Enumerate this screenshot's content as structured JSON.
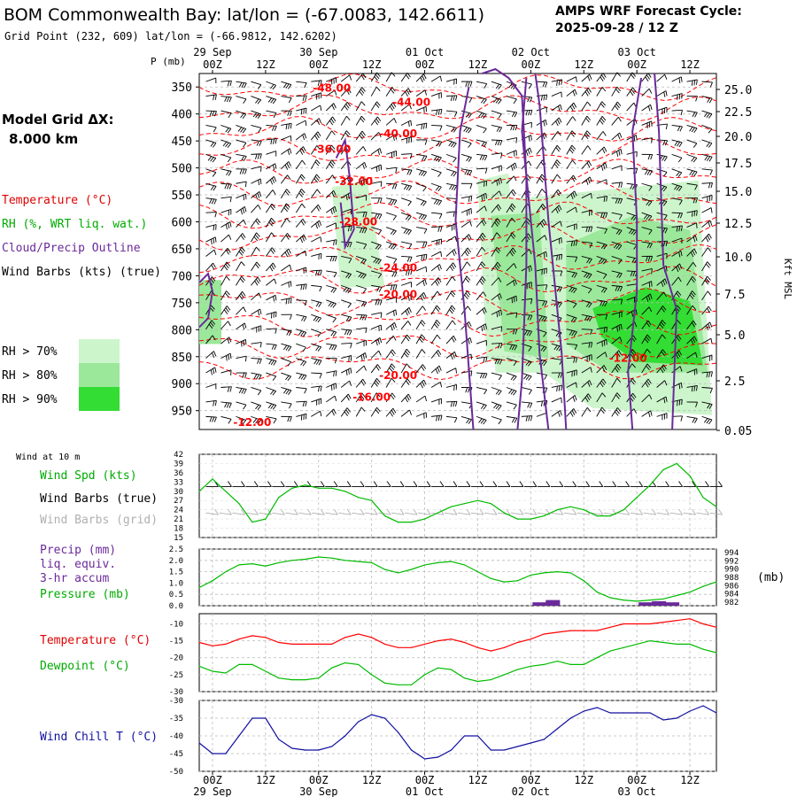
{
  "header": {
    "title": "BOM Commonwealth Bay:  lat/lon = (-67.0083, 142.6611)",
    "cycle_line1": "AMPS WRF Forecast Cycle:",
    "cycle_line2": "2025-09-28 / 12  Z",
    "grid_point": "Grid Point (232, 609) lat/lon = (-66.9812, 142.6202)"
  },
  "side": {
    "model_grid_line1": "Model Grid ΔX:",
    "model_grid_line2": "8.000 km",
    "legend_temperature": "Temperature (°C)",
    "legend_rh": "RH (%, WRT liq. wat.)",
    "legend_cloud": "Cloud/Precip Outline",
    "legend_wind": "Wind Barbs (kts) (true)",
    "rh_keys": [
      "RH > 70%",
      "RH > 80%",
      "RH > 90%"
    ],
    "wind10m": "Wind at 10 m",
    "wind_spd": "Wind Spd (kts)",
    "wind_barbs_true": "Wind Barbs (true)",
    "wind_barbs_grid": "Wind Barbs (grid)",
    "precip_line1": "Precip (mm)",
    "precip_line2": "liq. equiv.",
    "precip_line3": "3-hr accum",
    "pressure": "Pressure (mb)",
    "pressure_unit": "(mb)",
    "temperature": "Temperature (°C)",
    "dewpoint": "Dewpoint (°C)",
    "windchill": "Wind Chill T (°C)"
  },
  "colors": {
    "temperature": "#ff0000",
    "rh": "#00bb00",
    "cloud": "#6a2a9a",
    "wind": "#000000",
    "grid_barbs": "#b0b0b0",
    "windchill": "#1010a0",
    "rh70": "#ccf5cc",
    "rh80": "#9be89b",
    "rh90": "#33dd33"
  },
  "chart_data": [
    {
      "type": "heatmap",
      "name": "cross-section",
      "ylabel": "P (mb)",
      "yticks": [
        "350",
        "400",
        "450",
        "500",
        "550",
        "600",
        "650",
        "700",
        "750",
        "800",
        "850",
        "900",
        "950"
      ],
      "ylim": [
        325,
        985
      ],
      "right_ylabel": "Kft MSL",
      "right_ticks": [
        "25.0",
        "22.5",
        "20.0",
        "17.5",
        "15.0",
        "12.5",
        "10.0",
        "7.5",
        "5.0",
        "2.5",
        "0.05"
      ],
      "xticks": [
        "00Z",
        "12Z",
        "00Z",
        "12Z",
        "00Z",
        "12Z",
        "00Z",
        "12Z",
        "00Z",
        "12Z"
      ],
      "date_labels": [
        "29 Sep",
        "30 Sep",
        "01 Oct",
        "02 Oct",
        "03 Oct"
      ],
      "x_range_hours": [
        -3,
        114
      ],
      "temperature_contour_labels": [
        {
          "label": "-48.00",
          "hour": 27,
          "p": 352
        },
        {
          "label": "-44.00",
          "hour": 45,
          "p": 378
        },
        {
          "label": "-40.00",
          "hour": 42,
          "p": 437
        },
        {
          "label": "-36.00",
          "hour": 27,
          "p": 465
        },
        {
          "label": "-32.00",
          "hour": 32,
          "p": 525
        },
        {
          "label": "-28.00",
          "hour": 33,
          "p": 600
        },
        {
          "label": "-24.00",
          "hour": 42,
          "p": 685
        },
        {
          "label": "-20.00",
          "hour": 42,
          "p": 735
        },
        {
          "label": "-20.00",
          "hour": 42,
          "p": 885
        },
        {
          "label": "-16.00",
          "hour": 36,
          "p": 925
        },
        {
          "label": "-12.00",
          "hour": 9,
          "p": 972
        },
        {
          "label": "-12.00",
          "hour": 94,
          "p": 853
        }
      ]
    },
    {
      "type": "line",
      "name": "wind10m",
      "ylim": [
        15,
        42
      ],
      "yticks": [
        "42",
        "39",
        "36",
        "33",
        "30",
        "27",
        "24",
        "21",
        "18",
        "15"
      ],
      "series": [
        {
          "name": "Wind Spd (kts)",
          "x": [
            -3,
            0,
            3,
            6,
            9,
            12,
            15,
            18,
            21,
            24,
            27,
            30,
            33,
            36,
            39,
            42,
            45,
            48,
            51,
            54,
            57,
            60,
            63,
            66,
            69,
            72,
            75,
            78,
            81,
            84,
            87,
            90,
            93,
            96,
            99,
            102,
            105,
            108,
            111,
            114
          ],
          "values": [
            30,
            34,
            30,
            26,
            20,
            21,
            28,
            31,
            32,
            31,
            31,
            30,
            28,
            27,
            22,
            20,
            20,
            21,
            23,
            25,
            26,
            27,
            26,
            23,
            21,
            21,
            22,
            24,
            25,
            24,
            22,
            22,
            24,
            28,
            32,
            37,
            39,
            35,
            28,
            25
          ]
        }
      ]
    },
    {
      "type": "line",
      "name": "precip-pressure",
      "ylim": [
        0,
        2.5
      ],
      "yticks": [
        "2.5",
        "2.0",
        "1.5",
        "1.0",
        "0.5",
        "0.0"
      ],
      "right_yticks": [
        "994",
        "992",
        "990",
        "988",
        "986",
        "984",
        "982"
      ],
      "series": [
        {
          "name": "Pressure (mb)",
          "x": [
            -3,
            0,
            3,
            6,
            9,
            12,
            15,
            18,
            21,
            24,
            27,
            30,
            33,
            36,
            39,
            42,
            45,
            48,
            51,
            54,
            57,
            60,
            63,
            66,
            69,
            72,
            75,
            78,
            81,
            84,
            87,
            90,
            93,
            96,
            99,
            102,
            105,
            108,
            111,
            114
          ],
          "values": [
            0.8,
            1.1,
            1.5,
            1.8,
            1.85,
            1.75,
            1.9,
            2.0,
            2.05,
            2.15,
            2.1,
            2.0,
            1.95,
            1.9,
            1.6,
            1.45,
            1.6,
            1.8,
            1.9,
            1.95,
            1.8,
            1.5,
            1.2,
            1.05,
            1.1,
            1.35,
            1.45,
            1.5,
            1.45,
            1.1,
            0.6,
            0.35,
            0.25,
            0.2,
            0.25,
            0.3,
            0.45,
            0.6,
            0.85,
            1.05
          ]
        }
      ],
      "precip_bars": [
        {
          "hour": 74,
          "value": 0.15
        },
        {
          "hour": 77,
          "value": 0.25
        },
        {
          "hour": 98,
          "value": 0.15
        },
        {
          "hour": 101,
          "value": 0.2
        },
        {
          "hour": 104,
          "value": 0.15
        }
      ]
    },
    {
      "type": "line",
      "name": "temperature-dewpoint",
      "ylim": [
        -30,
        -7
      ],
      "yticks": [
        "-10",
        "-15",
        "-20",
        "-25",
        "-30"
      ],
      "series": [
        {
          "name": "Temperature (°C)",
          "x": [
            -3,
            0,
            3,
            6,
            9,
            12,
            15,
            18,
            21,
            24,
            27,
            30,
            33,
            36,
            39,
            42,
            45,
            48,
            51,
            54,
            57,
            60,
            63,
            66,
            69,
            72,
            75,
            78,
            81,
            84,
            87,
            90,
            93,
            96,
            99,
            102,
            105,
            108,
            111,
            114
          ],
          "values": [
            -15.5,
            -16.5,
            -16,
            -14.5,
            -13.5,
            -14,
            -15.5,
            -16,
            -16,
            -16,
            -16,
            -14,
            -13,
            -14,
            -16,
            -17,
            -17,
            -16,
            -15,
            -14.5,
            -15.5,
            -17,
            -18,
            -17,
            -15.5,
            -14.5,
            -13,
            -12.5,
            -12,
            -12,
            -12,
            -11,
            -10,
            -10,
            -10,
            -9.5,
            -9,
            -8.5,
            -10,
            -11
          ]
        },
        {
          "name": "Dewpoint (°C)",
          "x": [
            -3,
            0,
            3,
            6,
            9,
            12,
            15,
            18,
            21,
            24,
            27,
            30,
            33,
            36,
            39,
            42,
            45,
            48,
            51,
            54,
            57,
            60,
            63,
            66,
            69,
            72,
            75,
            78,
            81,
            84,
            87,
            90,
            93,
            96,
            99,
            102,
            105,
            108,
            111,
            114
          ],
          "values": [
            -22.5,
            -24,
            -24.5,
            -22,
            -22,
            -24,
            -26,
            -26.5,
            -26.5,
            -26,
            -23,
            -21.5,
            -22,
            -25,
            -27.5,
            -28,
            -28,
            -25,
            -23,
            -23.5,
            -26,
            -27,
            -26.5,
            -25,
            -23.5,
            -22.5,
            -22,
            -21,
            -22,
            -22,
            -20,
            -18,
            -17,
            -16,
            -15,
            -15.5,
            -16,
            -16,
            -17.5,
            -18.5
          ]
        }
      ]
    },
    {
      "type": "line",
      "name": "windchill",
      "ylim": [
        -50,
        -30
      ],
      "yticks": [
        "-30",
        "-35",
        "-40",
        "-45",
        "-50"
      ],
      "series": [
        {
          "name": "Wind Chill T (°C)",
          "x": [
            -3,
            0,
            3,
            6,
            9,
            12,
            15,
            18,
            21,
            24,
            27,
            30,
            33,
            36,
            39,
            42,
            45,
            48,
            51,
            54,
            57,
            60,
            63,
            66,
            69,
            72,
            75,
            78,
            81,
            84,
            87,
            90,
            93,
            96,
            99,
            102,
            105,
            108,
            111,
            114
          ],
          "values": [
            -42,
            -45,
            -45,
            -40,
            -35,
            -35,
            -41,
            -43.5,
            -44,
            -44,
            -43,
            -40,
            -36,
            -34,
            -35,
            -39,
            -44,
            -46.5,
            -46,
            -44,
            -40,
            -40,
            -44,
            -44,
            -43,
            -42,
            -41,
            -38,
            -35,
            -33,
            -32,
            -33.5,
            -33.5,
            -33.5,
            -33.5,
            -35.5,
            -35,
            -33,
            -31.5,
            -33.5
          ]
        }
      ]
    }
  ]
}
